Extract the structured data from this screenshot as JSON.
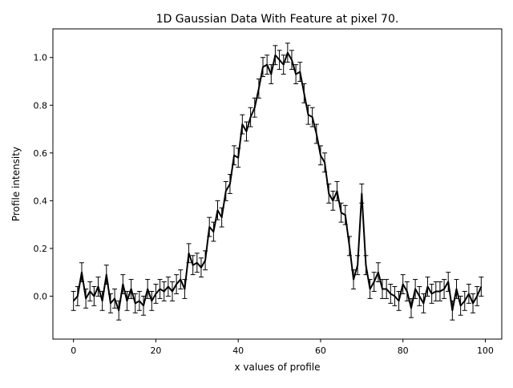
{
  "chart_data": {
    "type": "line",
    "title": "1D Gaussian Data With Feature at pixel 70.",
    "xlabel": "x values of profile",
    "ylabel": "Profile intensity",
    "xlim": [
      -5,
      104
    ],
    "ylim": [
      -0.18,
      1.12
    ],
    "x_ticks": [
      0,
      20,
      40,
      60,
      80,
      100
    ],
    "x_tick_labels": [
      "0",
      "20",
      "40",
      "60",
      "80",
      "100"
    ],
    "y_ticks": [
      0.0,
      0.2,
      0.4,
      0.6,
      0.8,
      1.0
    ],
    "y_tick_labels": [
      "0.0",
      "0.2",
      "0.4",
      "0.6",
      "0.8",
      "1.0"
    ],
    "grid": false,
    "series": [
      {
        "color": "#000000",
        "x": [
          0,
          1,
          2,
          3,
          4,
          5,
          6,
          7,
          8,
          9,
          10,
          11,
          12,
          13,
          14,
          15,
          16,
          17,
          18,
          19,
          20,
          21,
          22,
          23,
          24,
          25,
          26,
          27,
          28,
          29,
          30,
          31,
          32,
          33,
          34,
          35,
          36,
          37,
          38,
          39,
          40,
          41,
          42,
          43,
          44,
          45,
          46,
          47,
          48,
          49,
          50,
          51,
          52,
          53,
          54,
          55,
          56,
          57,
          58,
          59,
          60,
          61,
          62,
          63,
          64,
          65,
          66,
          67,
          68,
          69,
          70,
          71,
          72,
          73,
          74,
          75,
          76,
          77,
          78,
          79,
          80,
          81,
          82,
          83,
          84,
          85,
          86,
          87,
          88,
          89,
          90,
          91,
          92,
          93,
          94,
          95,
          96,
          97,
          98,
          99
        ],
        "y": [
          -0.02,
          0.0,
          0.1,
          -0.01,
          0.02,
          0.0,
          0.04,
          -0.02,
          0.09,
          -0.03,
          -0.01,
          -0.06,
          0.05,
          -0.02,
          0.03,
          -0.03,
          -0.02,
          -0.04,
          0.03,
          -0.02,
          0.01,
          0.03,
          0.02,
          0.04,
          0.02,
          0.05,
          0.07,
          0.03,
          0.18,
          0.13,
          0.14,
          0.12,
          0.15,
          0.29,
          0.27,
          0.36,
          0.33,
          0.44,
          0.47,
          0.59,
          0.58,
          0.72,
          0.69,
          0.75,
          0.79,
          0.87,
          0.96,
          0.97,
          0.93,
          1.01,
          0.99,
          0.97,
          1.02,
          0.99,
          0.93,
          0.94,
          0.85,
          0.76,
          0.75,
          0.68,
          0.59,
          0.56,
          0.43,
          0.4,
          0.44,
          0.35,
          0.34,
          0.21,
          0.07,
          0.13,
          0.43,
          0.13,
          0.03,
          0.06,
          0.1,
          0.03,
          0.03,
          0.01,
          0.0,
          -0.02,
          0.05,
          0.02,
          -0.05,
          0.03,
          0.0,
          -0.03,
          0.04,
          0.01,
          0.02,
          0.02,
          0.03,
          0.06,
          -0.06,
          0.03,
          -0.04,
          -0.02,
          0.01,
          -0.03,
          0.0,
          0.04
        ],
        "error": 0.04
      }
    ]
  }
}
